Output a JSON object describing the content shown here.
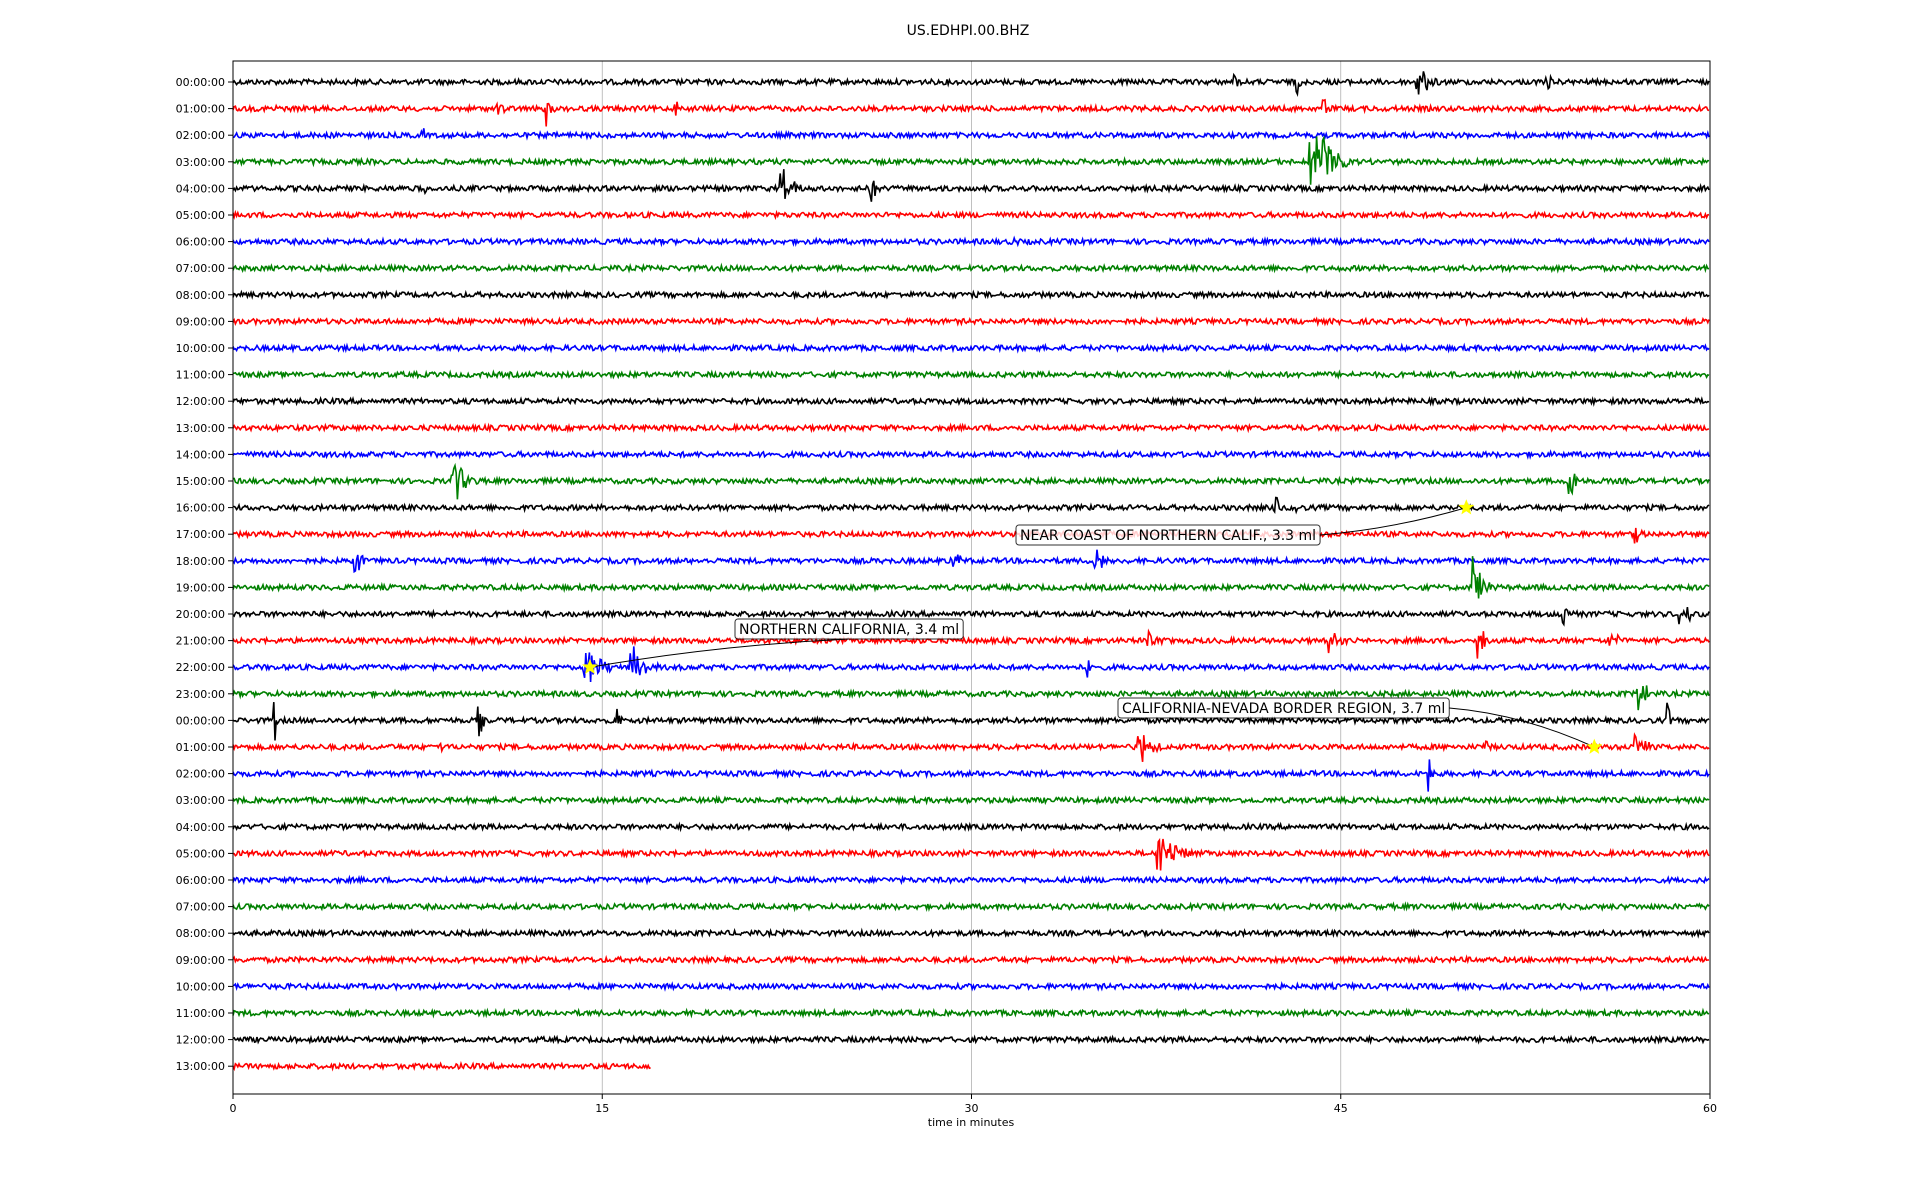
{
  "chart_data": {
    "type": "line",
    "title": "US.EDHPI.00.BHZ",
    "xlabel": "time in minutes",
    "ylabel": "",
    "xlim": [
      0,
      60
    ],
    "x_ticks": [
      0,
      15,
      30,
      45,
      60
    ],
    "grid_x": true,
    "row_labels": [
      "00:00:00",
      "01:00:00",
      "02:00:00",
      "03:00:00",
      "04:00:00",
      "05:00:00",
      "06:00:00",
      "07:00:00",
      "08:00:00",
      "09:00:00",
      "10:00:00",
      "11:00:00",
      "12:00:00",
      "13:00:00",
      "14:00:00",
      "15:00:00",
      "16:00:00",
      "17:00:00",
      "18:00:00",
      "19:00:00",
      "20:00:00",
      "21:00:00",
      "22:00:00",
      "23:00:00",
      "00:00:00",
      "01:00:00",
      "02:00:00",
      "03:00:00",
      "04:00:00",
      "05:00:00",
      "06:00:00",
      "07:00:00",
      "08:00:00",
      "09:00:00",
      "10:00:00",
      "11:00:00",
      "12:00:00",
      "13:00:00"
    ],
    "row_colors": [
      "#000000",
      "#ff0000",
      "#0000ff",
      "#008000"
    ],
    "last_row_end_minute": 17,
    "bursts": [
      {
        "row": 0,
        "minute": 40.7,
        "amp": 0.5,
        "dur": 0.4
      },
      {
        "row": 0,
        "minute": 43.2,
        "amp": 0.7,
        "dur": 0.4
      },
      {
        "row": 0,
        "minute": 48.1,
        "amp": 1.3,
        "dur": 1.2
      },
      {
        "row": 0,
        "minute": 53.4,
        "amp": 0.6,
        "dur": 0.5
      },
      {
        "row": 1,
        "minute": 1.7,
        "amp": 0.4,
        "dur": 0.2
      },
      {
        "row": 1,
        "minute": 10.8,
        "amp": 0.5,
        "dur": 0.5
      },
      {
        "row": 1,
        "minute": 12.7,
        "amp": 0.9,
        "dur": 0.6
      },
      {
        "row": 1,
        "minute": 18.0,
        "amp": 0.4,
        "dur": 0.4
      },
      {
        "row": 1,
        "minute": 44.3,
        "amp": 0.6,
        "dur": 0.5
      },
      {
        "row": 2,
        "minute": 7.7,
        "amp": 0.4,
        "dur": 0.3
      },
      {
        "row": 3,
        "minute": 43.8,
        "amp": 2.2,
        "dur": 1.5
      },
      {
        "row": 4,
        "minute": 7.8,
        "amp": 0.4,
        "dur": 0.4
      },
      {
        "row": 4,
        "minute": 22.3,
        "amp": 1.2,
        "dur": 1.0
      },
      {
        "row": 4,
        "minute": 25.9,
        "amp": 0.8,
        "dur": 0.6
      },
      {
        "row": 5,
        "minute": 47.0,
        "amp": 0.3,
        "dur": 0.2
      },
      {
        "row": 6,
        "minute": 31.8,
        "amp": 0.3,
        "dur": 0.2
      },
      {
        "row": 15,
        "minute": 8.9,
        "amp": 1.3,
        "dur": 1.2
      },
      {
        "row": 16,
        "minute": 42.3,
        "amp": 0.7,
        "dur": 0.4
      },
      {
        "row": 16,
        "minute": 43.1,
        "amp": 0.5,
        "dur": 0.3
      },
      {
        "row": 15,
        "minute": 54.3,
        "amp": 1.4,
        "dur": 0.5
      },
      {
        "row": 17,
        "minute": 57.0,
        "amp": 0.6,
        "dur": 0.6
      },
      {
        "row": 18,
        "minute": 5.0,
        "amp": 1.1,
        "dur": 0.4
      },
      {
        "row": 18,
        "minute": 29.2,
        "amp": 0.6,
        "dur": 1.0
      },
      {
        "row": 18,
        "minute": 35.0,
        "amp": 0.9,
        "dur": 1.0
      },
      {
        "row": 19,
        "minute": 50.4,
        "amp": 1.9,
        "dur": 0.8
      },
      {
        "row": 20,
        "minute": 54.0,
        "amp": 0.7,
        "dur": 0.8
      },
      {
        "row": 20,
        "minute": 58.8,
        "amp": 0.6,
        "dur": 1.2
      },
      {
        "row": 21,
        "minute": 37.2,
        "amp": 0.6,
        "dur": 0.8
      },
      {
        "row": 21,
        "minute": 44.5,
        "amp": 0.5,
        "dur": 1.6
      },
      {
        "row": 21,
        "minute": 50.6,
        "amp": 1.0,
        "dur": 0.6
      },
      {
        "row": 21,
        "minute": 55.9,
        "amp": 0.5,
        "dur": 1.2
      },
      {
        "row": 22,
        "minute": 14.3,
        "amp": 0.9,
        "dur": 1.8
      },
      {
        "row": 22,
        "minute": 16.2,
        "amp": 1.0,
        "dur": 1.2
      },
      {
        "row": 22,
        "minute": 34.7,
        "amp": 0.9,
        "dur": 0.3
      },
      {
        "row": 23,
        "minute": 57.1,
        "amp": 1.2,
        "dur": 0.6
      },
      {
        "row": 24,
        "minute": 1.7,
        "amp": 1.3,
        "dur": 0.2
      },
      {
        "row": 24,
        "minute": 10.0,
        "amp": 1.0,
        "dur": 0.3
      },
      {
        "row": 24,
        "minute": 15.6,
        "amp": 0.9,
        "dur": 0.3
      },
      {
        "row": 24,
        "minute": 58.3,
        "amp": 0.9,
        "dur": 0.2
      },
      {
        "row": 25,
        "minute": 8.4,
        "amp": 0.6,
        "dur": 0.3
      },
      {
        "row": 25,
        "minute": 36.8,
        "amp": 0.9,
        "dur": 1.2
      },
      {
        "row": 25,
        "minute": 50.9,
        "amp": 0.6,
        "dur": 0.3
      },
      {
        "row": 25,
        "minute": 57.0,
        "amp": 0.7,
        "dur": 1.0
      },
      {
        "row": 26,
        "minute": 48.6,
        "amp": 1.2,
        "dur": 0.3
      },
      {
        "row": 29,
        "minute": 21.7,
        "amp": 0.3,
        "dur": 0.3
      },
      {
        "row": 29,
        "minute": 37.6,
        "amp": 1.2,
        "dur": 1.6
      }
    ],
    "events": [
      {
        "label": "NEAR COAST OF NORTHERN CALIF., 3.3 ml",
        "row": 16,
        "minute": 50.1
      },
      {
        "label": "NORTHERN CALIFORNIA, 3.4 ml",
        "row": 22,
        "minute": 14.5
      },
      {
        "label": "CALIFORNIA-NEVADA BORDER REGION, 3.7 ml",
        "row": 25,
        "minute": 55.3
      }
    ]
  }
}
